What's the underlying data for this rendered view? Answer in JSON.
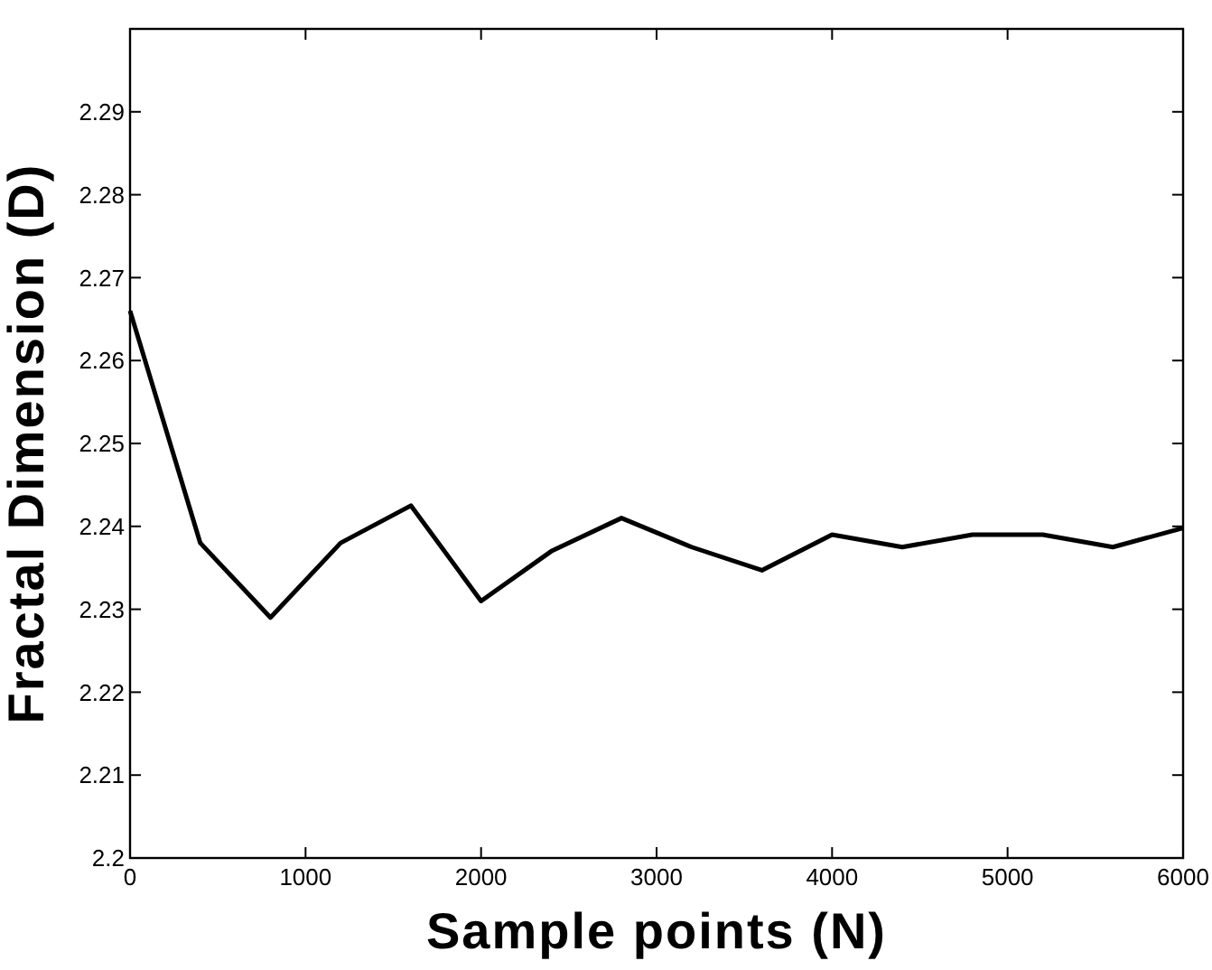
{
  "chart_data": {
    "type": "line",
    "xlabel": "Sample points (N)",
    "ylabel": "Fractal Dimension (D)",
    "x": [
      0,
      400,
      800,
      1200,
      1600,
      2000,
      2400,
      2800,
      3200,
      3600,
      4000,
      4400,
      4800,
      5200,
      5600,
      6000
    ],
    "series": [
      {
        "color": "#000000",
        "values": [
          2.266,
          2.238,
          2.229,
          2.238,
          2.2425,
          2.231,
          2.237,
          2.241,
          2.2375,
          2.2347,
          2.239,
          2.2375,
          2.239,
          2.239,
          2.2375,
          2.2398
        ]
      }
    ],
    "xlim": [
      0,
      6000
    ],
    "xticks": [
      0,
      1000,
      2000,
      3000,
      4000,
      5000,
      6000
    ],
    "ylim": [
      2.2,
      2.3
    ],
    "yticks": [
      2.2,
      2.21,
      2.22,
      2.23,
      2.24,
      2.25,
      2.26,
      2.27,
      2.28,
      2.29
    ],
    "grid": false,
    "marker": "none",
    "line_style": "solid"
  }
}
